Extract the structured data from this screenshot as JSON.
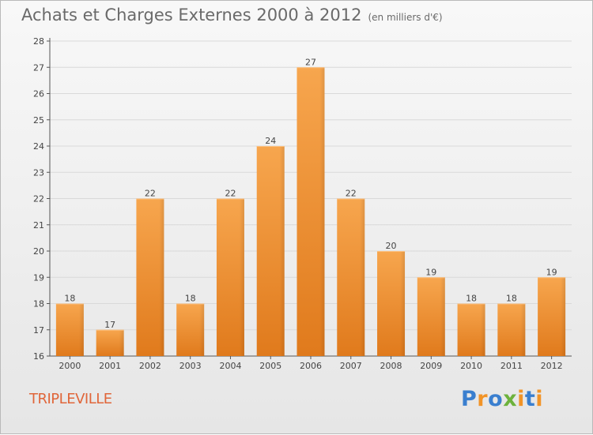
{
  "chart_data": {
    "type": "bar",
    "title": "Achats et Charges Externes 2000 à 2012",
    "subtitle": "(en milliers d'€)",
    "categories": [
      "2000",
      "2001",
      "2002",
      "2003",
      "2004",
      "2005",
      "2006",
      "2007",
      "2008",
      "2009",
      "2010",
      "2011",
      "2012"
    ],
    "values": [
      18,
      17,
      22,
      18,
      22,
      24,
      27,
      22,
      20,
      19,
      18,
      18,
      19
    ],
    "ylim": [
      16,
      28
    ],
    "yticks": [
      16,
      17,
      18,
      19,
      20,
      21,
      22,
      23,
      24,
      25,
      26,
      27,
      28
    ],
    "grid": true,
    "bar_color": "#f39a3c",
    "grid_color": "#d9d9d9"
  },
  "commune": "TRIPLEVILLE",
  "logo": {
    "text": "Proxiti",
    "colors": {
      "blue": "#3a7fcf",
      "orange": "#f29427",
      "green": "#6db23c"
    }
  }
}
